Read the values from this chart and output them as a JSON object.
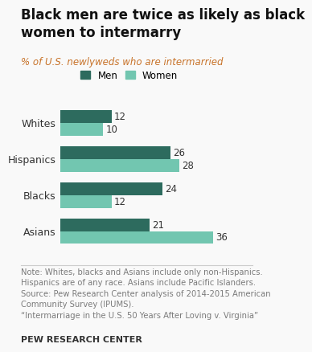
{
  "title": "Black men are twice as likely as black\nwomen to intermarry",
  "subtitle": "% of U.S. newlyweds who are intermarried",
  "categories": [
    "Asians",
    "Blacks",
    "Hispanics",
    "Whites"
  ],
  "men_values": [
    21,
    24,
    26,
    12
  ],
  "women_values": [
    36,
    12,
    28,
    10
  ],
  "men_color": "#2d6b5e",
  "women_color": "#72c6b0",
  "bar_height": 0.35,
  "xlim": [
    0,
    40
  ],
  "note_text": "Note: Whites, blacks and Asians include only non-Hispanics.\nHispanics are of any race. Asians include Pacific Islanders.\nSource: Pew Research Center analysis of 2014-2015 American\nCommunity Survey (IPUMS).\n“Intermarriage in the U.S. 50 Years After Loving v. Virginia”",
  "source_label": "PEW RESEARCH CENTER",
  "bg_color": "#f9f9f9",
  "label_fontsize": 8.5,
  "title_fontsize": 12,
  "subtitle_fontsize": 8.5,
  "note_fontsize": 7.2,
  "note_color": "#7b7b7b",
  "subtitle_color": "#c8732a"
}
